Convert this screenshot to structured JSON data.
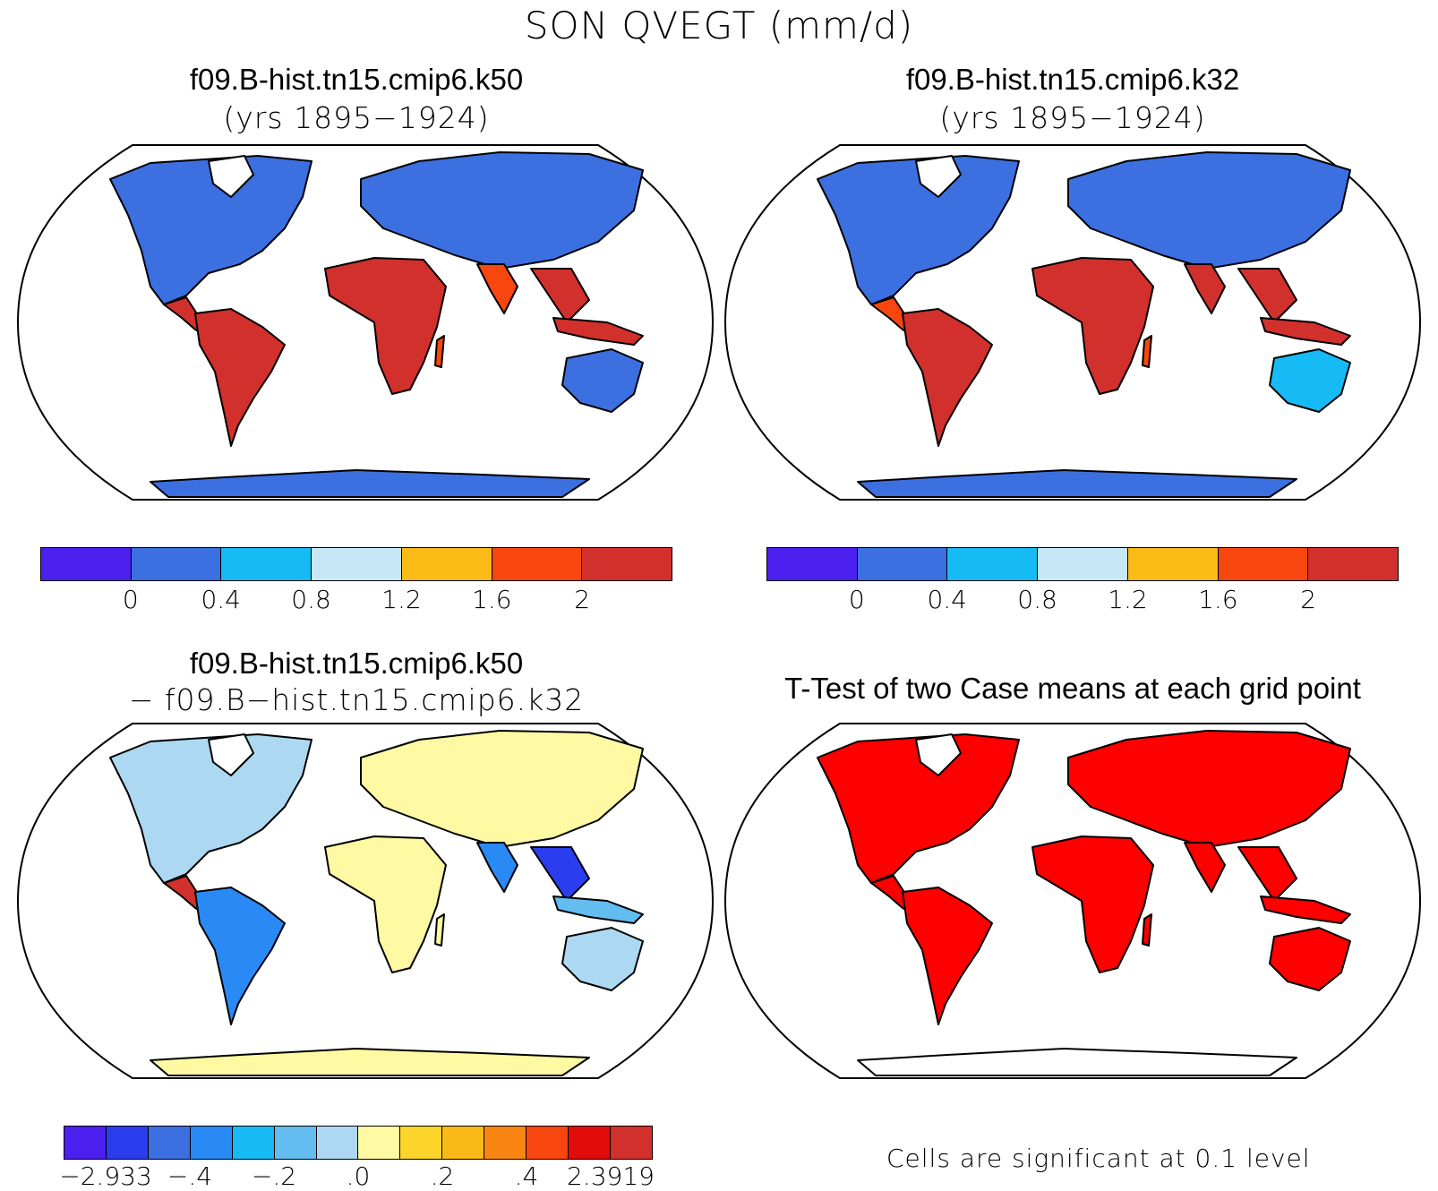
{
  "title": "SON QVEGT (mm/d)",
  "panels": [
    {
      "title": "f09.B-hist.tn15.cmip6.k50",
      "subtitle": "(yrs 1895−1924)"
    },
    {
      "title": "f09.B-hist.tn15.cmip6.k32",
      "subtitle": "(yrs 1895−1924)"
    },
    {
      "title": "f09.B-hist.tn15.cmip6.k50",
      "subtitle": "− f09.B−hist.tn15.cmip6.k32"
    },
    {
      "title": "T-Test of two Case means at each grid point",
      "note": "Cells are significant at 0.1 level"
    }
  ],
  "colorbar_top": {
    "colors": [
      "#4b1fee",
      "#3c6fe0",
      "#16bbf5",
      "#c7e7f7",
      "#fbbb17",
      "#f8460f",
      "#d2302c"
    ],
    "labels": [
      "0",
      "0.4",
      "0.8",
      "1.2",
      "1.6",
      "2"
    ]
  },
  "colorbar_diff": {
    "colors": [
      "#4b1fee",
      "#2a3ef0",
      "#3c6fe0",
      "#2a8af5",
      "#16bbf5",
      "#63bdf0",
      "#acd9f1",
      "#fef9a2",
      "#fbd52a",
      "#f9ba18",
      "#f88512",
      "#f8460f",
      "#e10c0a",
      "#d2302c"
    ],
    "labels": [
      "−2.933",
      "−.4",
      "−.2",
      ".0",
      ".2",
      ".4",
      "2.3919"
    ]
  },
  "ttest_color": "#ff0000"
}
